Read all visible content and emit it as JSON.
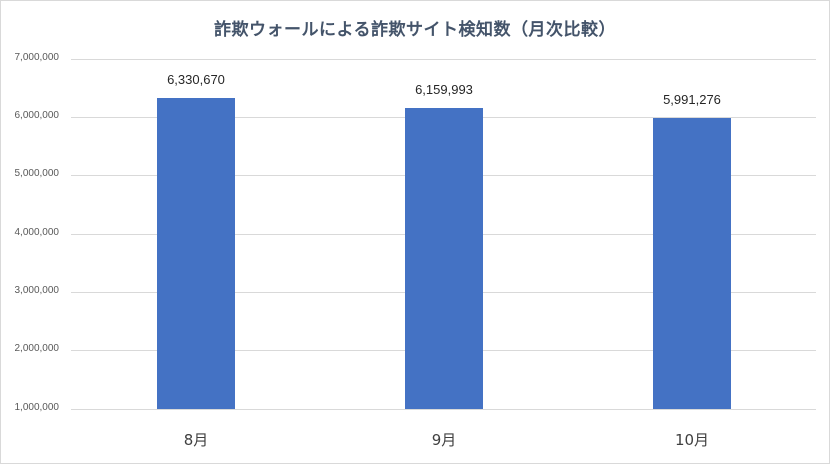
{
  "chart_data": {
    "type": "bar",
    "title": "詐欺ウォールによる詐欺サイト検知数（月次比較）",
    "categories": [
      "8月",
      "9月",
      "10月"
    ],
    "values": [
      6330670,
      6159993,
      5991276
    ],
    "value_labels": [
      "6,330,670",
      "6,159,993",
      "5,991,276"
    ],
    "xlabel": "",
    "ylabel": "",
    "ylim": [
      1000000,
      7000000
    ],
    "yticks": [
      1000000,
      2000000,
      3000000,
      4000000,
      5000000,
      6000000,
      7000000
    ],
    "ytick_labels": [
      "1,000,000",
      "2,000,000",
      "3,000,000",
      "4,000,000",
      "5,000,000",
      "6,000,000",
      "7,000,000"
    ],
    "grid": true,
    "legend": "none",
    "bar_color": "#4472c4"
  },
  "colors": {
    "bar": "#4472c4",
    "title": "#44546a",
    "gridline": "#d9d9d9",
    "border": "#d9d9d9"
  }
}
